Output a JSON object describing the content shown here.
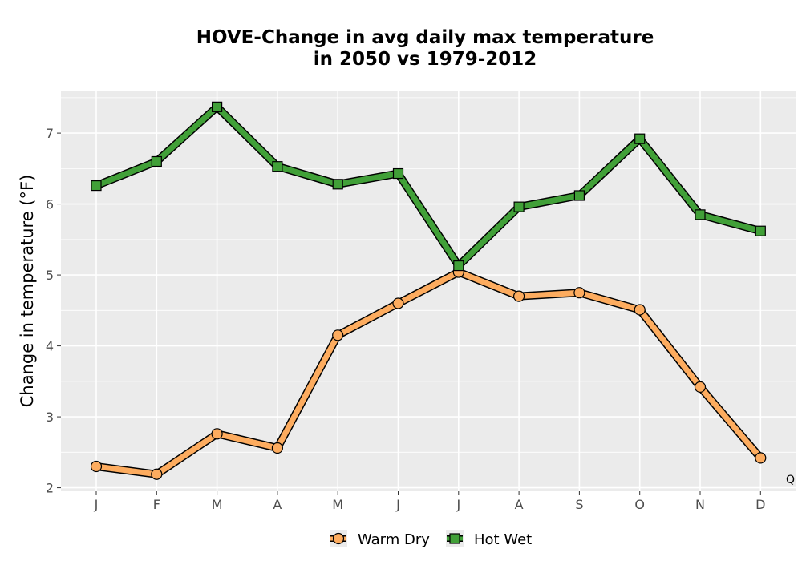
{
  "chart_data": {
    "type": "line",
    "title_lines": [
      "HOVE-Change in avg daily max temperature",
      "in 2050 vs 1979-2012"
    ],
    "xlabel": "",
    "ylabel": "Change in temperature (°F)",
    "categories": [
      "J",
      "F",
      "M",
      "A",
      "M",
      "J",
      "J",
      "A",
      "S",
      "O",
      "N",
      "D"
    ],
    "yticks": [
      2,
      3,
      4,
      5,
      6,
      7
    ],
    "ylim": [
      1.95,
      7.6
    ],
    "grid": true,
    "legend_position": "bottom",
    "corner_mark": "Q",
    "series": [
      {
        "name": "Warm Dry",
        "marker": "circle",
        "color": "#fdac5f",
        "values": [
          2.3,
          2.19,
          2.76,
          2.56,
          4.15,
          4.6,
          5.04,
          4.7,
          4.75,
          4.51,
          3.42,
          2.42
        ]
      },
      {
        "name": "Hot Wet",
        "marker": "square",
        "color": "#41a038",
        "values": [
          6.26,
          6.6,
          7.37,
          6.53,
          6.28,
          6.43,
          5.13,
          5.96,
          6.12,
          6.92,
          5.85,
          5.62
        ]
      }
    ]
  }
}
